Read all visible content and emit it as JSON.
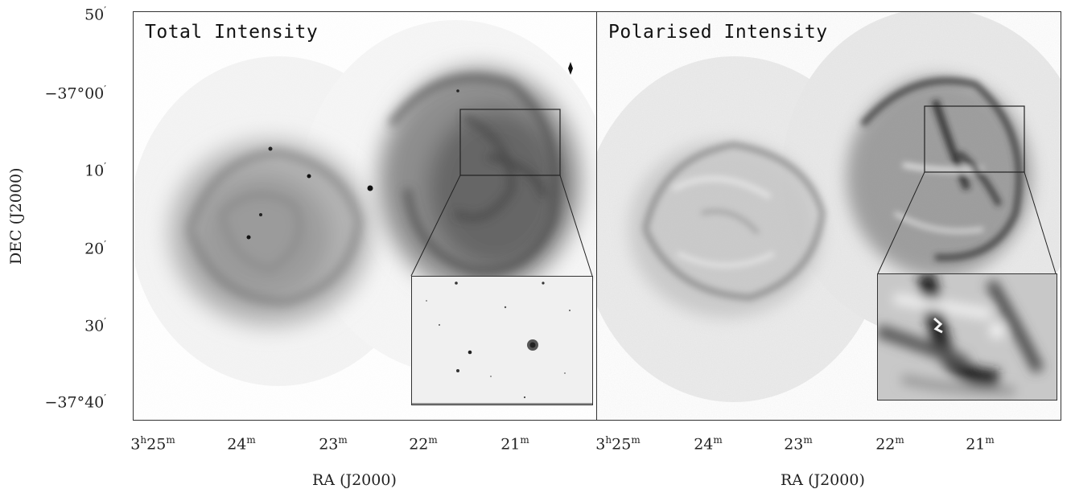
{
  "panels": {
    "left_title": "Total Intensity",
    "right_title": "Polarised Intensity"
  },
  "y_axis": {
    "label": "DEC (J2000)",
    "ticks": [
      {
        "main": "50",
        "sup": "′"
      },
      {
        "main": "−37°00",
        "sup": "′"
      },
      {
        "main": "10",
        "sup": "′"
      },
      {
        "main": "20",
        "sup": "′"
      },
      {
        "main": "30",
        "sup": "′"
      },
      {
        "main": "−37°40",
        "sup": "′"
      }
    ]
  },
  "x_axis": {
    "label_left": "RA (J2000)",
    "label_right": "RA (J2000)",
    "ticks": [
      {
        "pre": "3",
        "sup1": "h",
        "main": "25",
        "sup": "m"
      },
      {
        "main": "24",
        "sup": "m"
      },
      {
        "main": "23",
        "sup": "m"
      },
      {
        "main": "22",
        "sup": "m"
      },
      {
        "main": "21",
        "sup": "m"
      },
      {
        "pre": "3",
        "sup1": "h",
        "main": "25",
        "sup": "m"
      },
      {
        "main": "24",
        "sup": "m"
      },
      {
        "main": "23",
        "sup": "m"
      },
      {
        "main": "22",
        "sup": "m"
      },
      {
        "main": "21",
        "sup": "m"
      }
    ]
  },
  "colors": {
    "frame": "#333333",
    "emission_dark": "#3a3a3a",
    "background": "#ffffff"
  }
}
